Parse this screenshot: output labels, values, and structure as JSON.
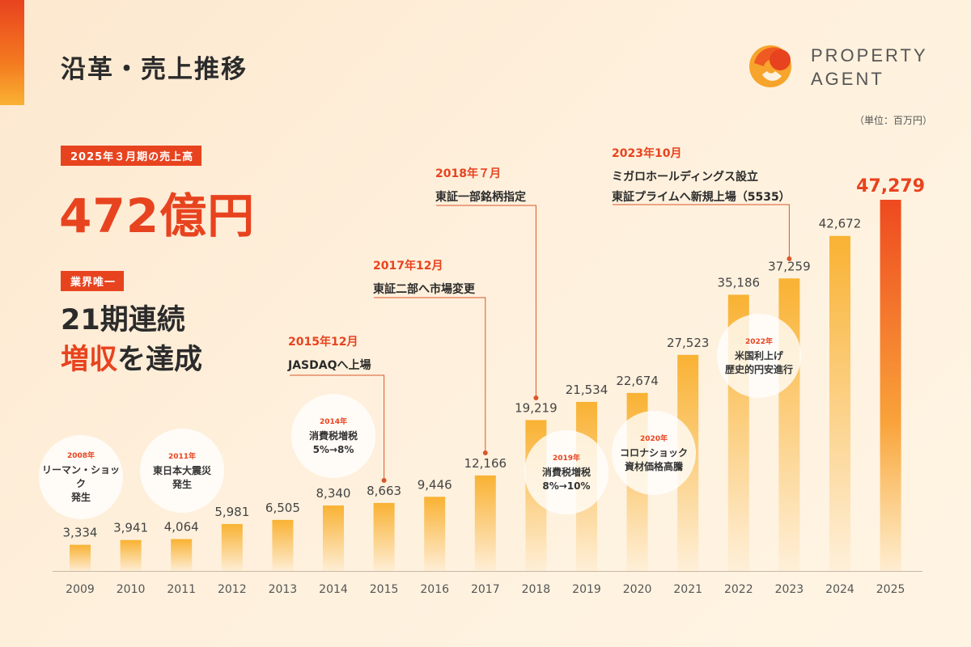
{
  "title": "沿革・売上推移",
  "logo": {
    "line1": "PROPERTY",
    "line2": "AGENT"
  },
  "unit_label": "（単位：百万円）",
  "highlight": {
    "sales_tag": "2025年３月期の売上高",
    "sales_value": "472億円",
    "unique_tag": "業界唯一",
    "streak_line1": "21期連続",
    "streak_line2_red": "増収",
    "streak_line2_rest": "を達成"
  },
  "events": [
    {
      "year": "2008年",
      "text": "リーマン・ショック\n発生"
    },
    {
      "year": "2011年",
      "text": "東日本大震災\n発生"
    },
    {
      "year": "2014年",
      "text": "消費税増税\n5%→8%"
    },
    {
      "year": "2019年",
      "text": "消費税増税\n8%→10%"
    },
    {
      "year": "2020年",
      "text": "コロナショック\n資材価格高騰"
    },
    {
      "year": "2022年",
      "text": "米国利上げ\n歴史的円安進行"
    }
  ],
  "milestones": [
    {
      "date": "2015年12月",
      "desc": "JASDAQへ上場",
      "year": "2015"
    },
    {
      "date": "2017年12月",
      "desc": "東証二部へ市場変更",
      "year": "2017"
    },
    {
      "date": "2018年７月",
      "desc": "東証一部銘柄指定",
      "year": "2018"
    },
    {
      "date": "2023年10月",
      "desc1": "ミガロホールディングス設立",
      "desc2": "東証プライムへ新規上場（5535）",
      "year": "2023"
    }
  ],
  "colors": {
    "accent": "#e8431f",
    "bar_top": "#f9b233",
    "bar_last_top": "#ee4a1f"
  },
  "chart_data": {
    "type": "bar",
    "categories": [
      "2009",
      "2010",
      "2011",
      "2012",
      "2013",
      "2014",
      "2015",
      "2016",
      "2017",
      "2018",
      "2019",
      "2020",
      "2021",
      "2022",
      "2023",
      "2024",
      "2025"
    ],
    "values": [
      3334,
      3941,
      4064,
      5981,
      6505,
      8340,
      8663,
      9446,
      12166,
      19219,
      21534,
      22674,
      27523,
      35186,
      37259,
      42672,
      47279
    ],
    "value_labels": [
      "3,334",
      "3,941",
      "4,064",
      "5,981",
      "6,505",
      "8,340",
      "8,663",
      "9,446",
      "12,166",
      "19,219",
      "21,534",
      "22,674",
      "27,523",
      "35,186",
      "37,259",
      "42,672",
      "47,279"
    ],
    "ylim": [
      0,
      47279
    ]
  }
}
